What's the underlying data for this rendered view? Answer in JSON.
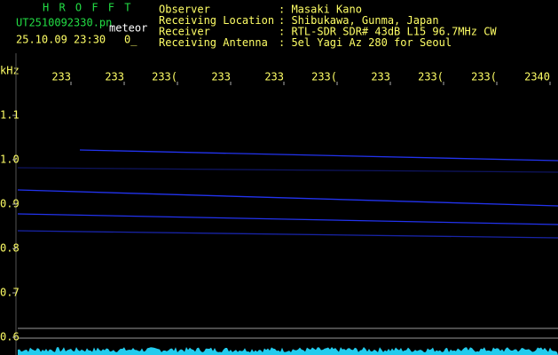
{
  "header": {
    "app": "H R O F F T",
    "file": "UT2510092330.pn",
    "mode": "meteor",
    "datetime": "25.10.09 23:30",
    "count": "0_"
  },
  "info": [
    {
      "label": "Observer",
      "value": ": Masaki Kano"
    },
    {
      "label": "Receiving Location",
      "value": ": Shibukawa, Gunma, Japan"
    },
    {
      "label": "Receiver",
      "value": ": RTL-SDR SDR# 43dB L15 96.7MHz CW"
    },
    {
      "label": "Receiving Antenna",
      "value": ": 5el Yagi Az 280 for Seoul"
    }
  ],
  "axis": {
    "unit": "kHz",
    "y_labels": [
      "1.1",
      "1.0",
      "0.9",
      "0.8",
      "0.7",
      "0.6"
    ],
    "x_labels": [
      "233",
      "233",
      "233(",
      "233",
      "233",
      "233(",
      "233",
      "233(",
      "233(",
      "2340"
    ]
  }
}
